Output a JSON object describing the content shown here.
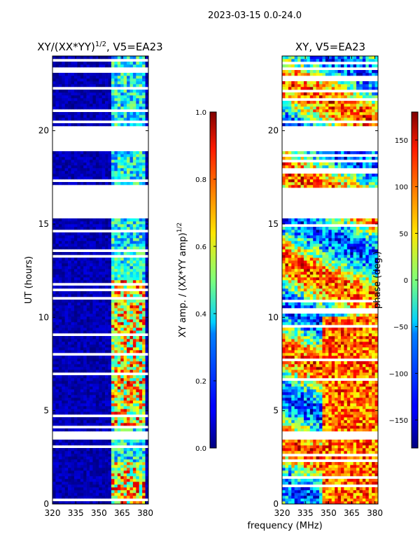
{
  "chart_data": {
    "suptitle": "2023-03-15 0.0-24.0",
    "xlabel": "frequency (MHz)",
    "panels": [
      {
        "type": "heatmap",
        "title": "XY/(XX*YY)^1/2, V5=EA23",
        "title_main": "XY/(XX*YY)",
        "title_sup": "1/2",
        "title_tail": ", V5=EA23",
        "ylabel": "UT (hours)",
        "xlim": [
          320,
          382
        ],
        "ylim": [
          0,
          24
        ],
        "xticks": [
          "320",
          "335",
          "350",
          "365",
          "380"
        ],
        "xtick_values": [
          320,
          335,
          350,
          365,
          380
        ],
        "yticks": [
          "0",
          "5",
          "10",
          "15",
          "20"
        ],
        "ytick_values": [
          0,
          5,
          10,
          15,
          20
        ],
        "colorbar": {
          "label_main": "XY amp. / (XX*YY amp)",
          "label_sup": "1/2",
          "range": [
            0.0,
            1.0
          ],
          "ticks": [
            "0.0",
            "0.2",
            "0.4",
            "0.6",
            "0.8",
            "1.0"
          ],
          "tick_values": [
            0.0,
            0.2,
            0.4,
            0.6,
            0.8,
            1.0
          ]
        }
      },
      {
        "type": "heatmap",
        "title": "XY, V5=EA23",
        "xlim": [
          320,
          382
        ],
        "ylim": [
          0,
          24
        ],
        "xticks": [
          "320",
          "335",
          "350",
          "365",
          "380"
        ],
        "xtick_values": [
          320,
          335,
          350,
          365,
          380
        ],
        "yticks": [
          "0",
          "5",
          "10",
          "15",
          "20"
        ],
        "ytick_values": [
          0,
          5,
          10,
          15,
          20
        ],
        "colorbar": {
          "label": "phase (deg.)",
          "range": [
            -180,
            180
          ],
          "ticks": [
            "−150",
            "−100",
            "−50",
            "0",
            "50",
            "100",
            "150"
          ],
          "tick_values": [
            -150,
            -100,
            -50,
            0,
            50,
            100,
            150
          ]
        }
      }
    ],
    "data_gaps_hours": [
      [
        3.5,
        3.95
      ],
      [
        15.3,
        17.0
      ],
      [
        18.85,
        20.2
      ],
      [
        23.2,
        23.45
      ],
      [
        20.45,
        20.55
      ]
    ],
    "active_band_mhz": [
      359,
      380
    ]
  }
}
